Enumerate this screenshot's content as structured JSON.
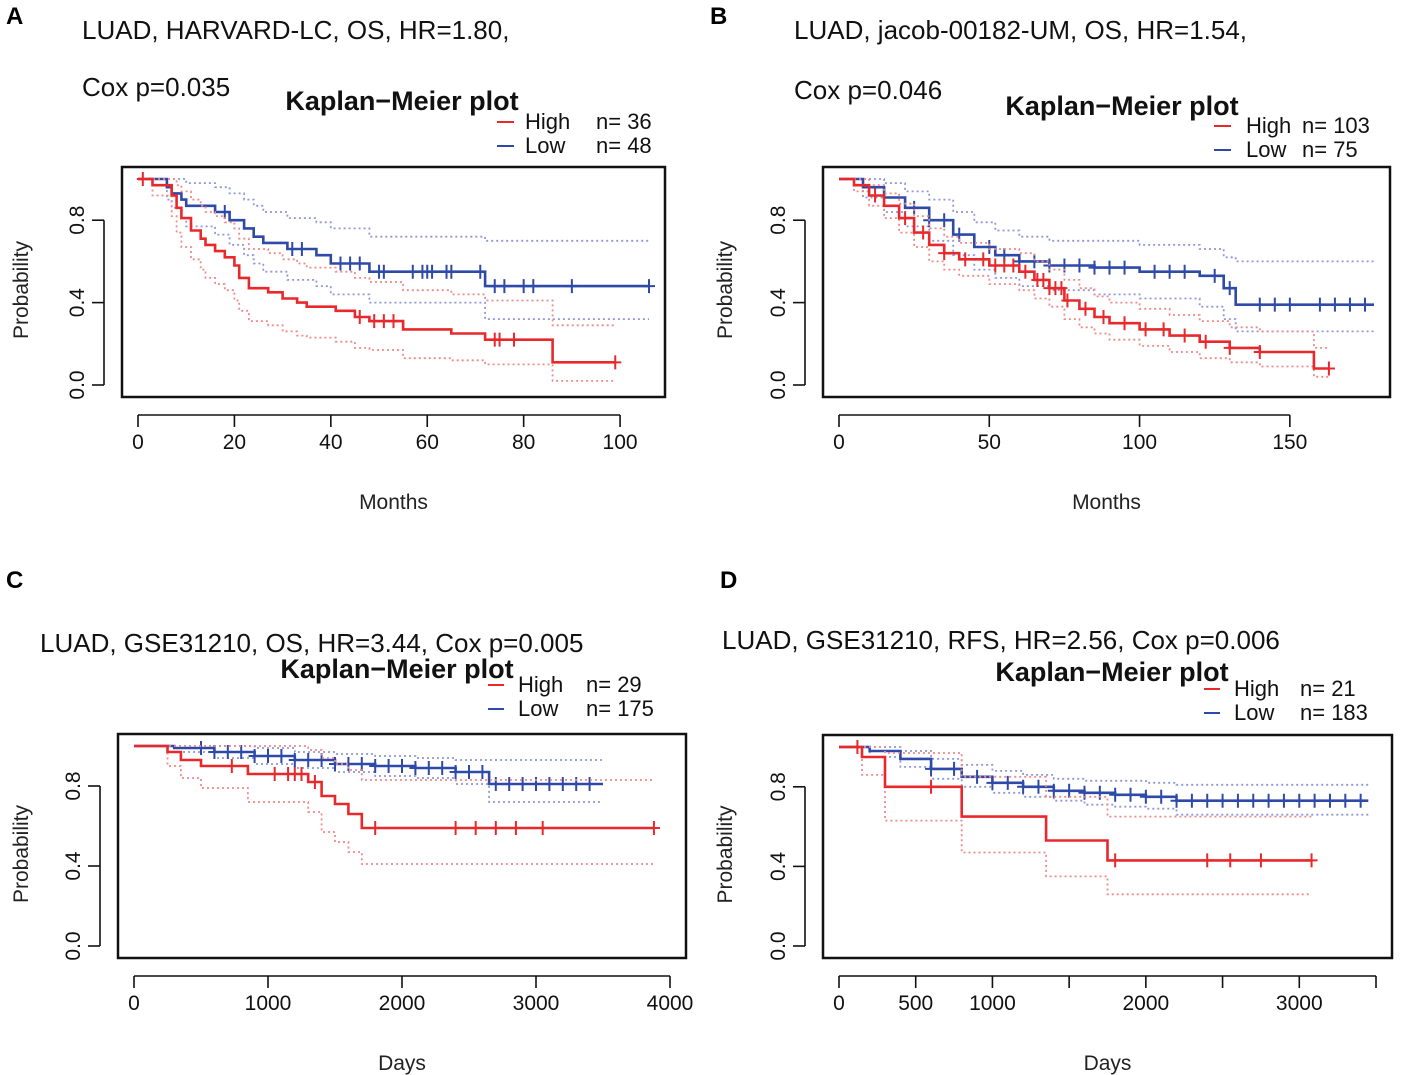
{
  "colors": {
    "high": "#e8282b",
    "low": "#2e4aa8",
    "high_ci": "#f08a8a",
    "low_ci": "#8f98d8",
    "axis": "#111111"
  },
  "chart_data": [
    {
      "id": "A",
      "type": "line",
      "panel_label": "A",
      "heading": [
        "LUAD, HARVARD-LC, OS, HR=1.80,",
        "Cox p=0.035"
      ],
      "title": "Kaplan−Meier plot",
      "xlabel": "Months",
      "ylabel": "Probability",
      "xlim": [
        0,
        106
      ],
      "ylim": [
        0,
        1
      ],
      "xticks": [
        0,
        20,
        40,
        60,
        80,
        100
      ],
      "xtick_labels": [
        "0",
        "20",
        "40",
        "60",
        "80",
        "100"
      ],
      "yticks": [
        0,
        0.4,
        0.8
      ],
      "ytick_labels": [
        "0.0",
        "0.4",
        "0.8"
      ],
      "legend": [
        {
          "group": "high",
          "label": "High",
          "n_label": "n= 36"
        },
        {
          "group": "low",
          "label": "Low",
          "n_label": "n= 48"
        }
      ],
      "series": [
        {
          "name": "High",
          "group": "high",
          "x": [
            0,
            3,
            7,
            8,
            9,
            11,
            13,
            14,
            16,
            18,
            20,
            21,
            23,
            27,
            30,
            33,
            35,
            41,
            45,
            48,
            55,
            65,
            72,
            86,
            99
          ],
          "y": [
            1.0,
            0.97,
            0.92,
            0.86,
            0.81,
            0.75,
            0.71,
            0.68,
            0.65,
            0.62,
            0.58,
            0.52,
            0.47,
            0.45,
            0.42,
            0.4,
            0.38,
            0.36,
            0.33,
            0.31,
            0.27,
            0.25,
            0.22,
            0.11,
            0.11
          ],
          "censor_x": [
            1,
            46,
            49,
            51,
            53,
            74,
            75,
            78,
            99
          ],
          "ci_lower_y": [
            1.0,
            0.92,
            0.82,
            0.74,
            0.67,
            0.61,
            0.56,
            0.52,
            0.49,
            0.46,
            0.41,
            0.36,
            0.31,
            0.29,
            0.26,
            0.24,
            0.23,
            0.21,
            0.18,
            0.17,
            0.13,
            0.12,
            0.1,
            0.02,
            0.02
          ],
          "ci_upper_y": [
            1.0,
            1.0,
            1.0,
            0.97,
            0.94,
            0.9,
            0.87,
            0.84,
            0.82,
            0.79,
            0.76,
            0.71,
            0.66,
            0.64,
            0.61,
            0.59,
            0.57,
            0.55,
            0.52,
            0.5,
            0.46,
            0.44,
            0.41,
            0.29,
            0.29
          ]
        },
        {
          "name": "Low",
          "group": "low",
          "x": [
            0,
            6,
            7,
            9,
            10,
            16,
            19,
            22,
            24,
            26,
            31,
            37,
            40,
            48,
            72,
            106
          ],
          "y": [
            1.0,
            0.96,
            0.93,
            0.9,
            0.87,
            0.84,
            0.8,
            0.76,
            0.72,
            0.69,
            0.66,
            0.63,
            0.59,
            0.55,
            0.48,
            0.48
          ],
          "censor_x": [
            18,
            32,
            34,
            42,
            44,
            46,
            50,
            51,
            57,
            59,
            60,
            61,
            64,
            65,
            71,
            74,
            76,
            80,
            82,
            90,
            106
          ],
          "ci_lower_y": [
            1.0,
            0.9,
            0.86,
            0.81,
            0.77,
            0.73,
            0.68,
            0.63,
            0.59,
            0.55,
            0.51,
            0.48,
            0.44,
            0.4,
            0.32,
            0.32
          ],
          "ci_upper_y": [
            1.0,
            1.0,
            1.0,
            1.0,
            0.98,
            0.96,
            0.93,
            0.9,
            0.87,
            0.84,
            0.81,
            0.79,
            0.76,
            0.72,
            0.7,
            0.7
          ]
        }
      ]
    },
    {
      "id": "B",
      "type": "line",
      "panel_label": "B",
      "heading": [
        "LUAD, jacob-00182-UM, OS, HR=1.54,",
        "Cox p=0.046"
      ],
      "title": "Kaplan−Meier plot",
      "xlabel": "Months",
      "ylabel": "Probability",
      "xlim": [
        0,
        178
      ],
      "ylim": [
        0,
        1
      ],
      "xticks": [
        0,
        50,
        100,
        150
      ],
      "xtick_labels": [
        "0",
        "50",
        "100",
        "150"
      ],
      "yticks": [
        0,
        0.4,
        0.8
      ],
      "ytick_labels": [
        "0.0",
        "0.4",
        "0.8"
      ],
      "legend": [
        {
          "group": "high",
          "label": "High",
          "n_label": "n= 103"
        },
        {
          "group": "low",
          "label": "Low",
          "n_label": "n= 75"
        }
      ],
      "series": [
        {
          "name": "High",
          "group": "high",
          "x": [
            0,
            5,
            10,
            15,
            20,
            25,
            30,
            35,
            40,
            50,
            60,
            65,
            70,
            75,
            80,
            85,
            90,
            100,
            110,
            120,
            130,
            140,
            155,
            158,
            163
          ],
          "y": [
            1.0,
            0.97,
            0.92,
            0.87,
            0.81,
            0.74,
            0.68,
            0.64,
            0.61,
            0.58,
            0.55,
            0.51,
            0.47,
            0.41,
            0.37,
            0.33,
            0.3,
            0.27,
            0.24,
            0.21,
            0.18,
            0.16,
            0.16,
            0.08,
            0.08
          ],
          "censor_x": [
            12,
            22,
            28,
            35,
            42,
            48,
            52,
            55,
            58,
            62,
            66,
            68,
            70,
            72,
            74,
            76,
            82,
            88,
            95,
            102,
            108,
            115,
            122,
            130,
            140,
            163
          ],
          "ci_lower_y": [
            1.0,
            0.94,
            0.87,
            0.81,
            0.74,
            0.67,
            0.6,
            0.56,
            0.53,
            0.49,
            0.46,
            0.42,
            0.38,
            0.32,
            0.28,
            0.25,
            0.22,
            0.19,
            0.16,
            0.13,
            0.11,
            0.09,
            0.09,
            0.04,
            0.04
          ],
          "ci_upper_y": [
            1.0,
            1.0,
            0.97,
            0.93,
            0.88,
            0.82,
            0.76,
            0.72,
            0.69,
            0.66,
            0.64,
            0.6,
            0.56,
            0.51,
            0.47,
            0.43,
            0.4,
            0.37,
            0.34,
            0.31,
            0.28,
            0.26,
            0.26,
            0.18,
            0.18
          ]
        },
        {
          "name": "Low",
          "group": "low",
          "x": [
            0,
            8,
            15,
            22,
            30,
            38,
            45,
            52,
            60,
            70,
            85,
            100,
            120,
            128,
            132,
            178
          ],
          "y": [
            1.0,
            0.96,
            0.91,
            0.86,
            0.8,
            0.73,
            0.67,
            0.63,
            0.6,
            0.58,
            0.57,
            0.55,
            0.53,
            0.47,
            0.39,
            0.39
          ],
          "censor_x": [
            25,
            30,
            35,
            40,
            50,
            55,
            60,
            65,
            70,
            75,
            80,
            85,
            90,
            95,
            105,
            110,
            115,
            125,
            130,
            140,
            145,
            150,
            160,
            165,
            170,
            175
          ],
          "ci_lower_y": [
            1.0,
            0.91,
            0.84,
            0.77,
            0.7,
            0.63,
            0.56,
            0.52,
            0.48,
            0.46,
            0.44,
            0.42,
            0.38,
            0.32,
            0.26,
            0.26
          ],
          "ci_upper_y": [
            1.0,
            1.0,
            0.98,
            0.94,
            0.9,
            0.84,
            0.79,
            0.75,
            0.72,
            0.7,
            0.7,
            0.68,
            0.66,
            0.62,
            0.6,
            0.6
          ]
        }
      ]
    },
    {
      "id": "C",
      "type": "line",
      "panel_label": "C",
      "heading": [
        "LUAD, GSE31210, OS, HR=3.44, Cox p=0.005"
      ],
      "title": "Kaplan−Meier plot",
      "xlabel": "Days",
      "ylabel": "Probability",
      "xlim": [
        0,
        4000
      ],
      "ylim": [
        0,
        1
      ],
      "xticks": [
        0,
        1000,
        2000,
        3000,
        4000
      ],
      "xtick_labels": [
        "0",
        "1000",
        "2000",
        "3000",
        "4000"
      ],
      "yticks": [
        0,
        0.4,
        0.8
      ],
      "ytick_labels": [
        "0.0",
        "0.4",
        "0.8"
      ],
      "legend": [
        {
          "group": "high",
          "label": "High",
          "n_label": "n= 29"
        },
        {
          "group": "low",
          "label": "Low",
          "n_label": "n= 175"
        }
      ],
      "series": [
        {
          "name": "High",
          "group": "high",
          "x": [
            0,
            250,
            350,
            500,
            850,
            1000,
            1300,
            1400,
            1500,
            1600,
            1700,
            3880
          ],
          "y": [
            1.0,
            0.97,
            0.93,
            0.9,
            0.86,
            0.86,
            0.82,
            0.75,
            0.71,
            0.66,
            0.59,
            0.59
          ],
          "censor_x": [
            730,
            1050,
            1150,
            1200,
            1250,
            1350,
            1800,
            2400,
            2550,
            2700,
            2850,
            3050,
            3880
          ],
          "ci_lower_y": [
            1.0,
            0.9,
            0.84,
            0.79,
            0.72,
            0.72,
            0.67,
            0.57,
            0.52,
            0.47,
            0.41,
            0.41
          ],
          "ci_upper_y": [
            1.0,
            1.0,
            1.0,
            1.0,
            1.0,
            1.0,
            0.98,
            0.94,
            0.91,
            0.88,
            0.83,
            0.83
          ]
        },
        {
          "name": "Low",
          "group": "low",
          "x": [
            0,
            300,
            600,
            900,
            1200,
            1500,
            1800,
            2100,
            2400,
            2650,
            3500
          ],
          "y": [
            1.0,
            0.99,
            0.97,
            0.95,
            0.93,
            0.91,
            0.9,
            0.89,
            0.87,
            0.81,
            0.81
          ],
          "censor_x": [
            500,
            600,
            700,
            800,
            900,
            1000,
            1100,
            1200,
            1300,
            1400,
            1500,
            1600,
            1700,
            1800,
            1900,
            2000,
            2100,
            2200,
            2300,
            2400,
            2500,
            2600,
            2700,
            2800,
            2900,
            3000,
            3100,
            3200,
            3300,
            3400
          ],
          "ci_lower_y": [
            1.0,
            0.97,
            0.94,
            0.91,
            0.89,
            0.87,
            0.85,
            0.84,
            0.81,
            0.72,
            0.72
          ],
          "ci_upper_y": [
            1.0,
            1.0,
            1.0,
            0.99,
            0.97,
            0.96,
            0.95,
            0.94,
            0.93,
            0.93,
            0.93
          ]
        }
      ]
    },
    {
      "id": "D",
      "type": "line",
      "panel_label": "D",
      "heading": [
        "LUAD, GSE31210, RFS, HR=2.56, Cox p=0.006"
      ],
      "title": "Kaplan−Meier plot",
      "xlabel": "Days",
      "ylabel": "Probability",
      "xlim": [
        0,
        3500
      ],
      "ylim": [
        0,
        1
      ],
      "xticks": [
        0,
        500,
        1000,
        2000,
        3000
      ],
      "xtick_labels": [
        "0",
        "500",
        "1000",
        "2000",
        "3000"
      ],
      "minor_xticks": [
        1500,
        2500,
        3500
      ],
      "yticks": [
        0,
        0.4,
        0.8
      ],
      "ytick_labels": [
        "0.0",
        "0.4",
        "0.8"
      ],
      "legend": [
        {
          "group": "high",
          "label": "High",
          "n_label": "n= 21"
        },
        {
          "group": "low",
          "label": "Low",
          "n_label": "n= 183"
        }
      ],
      "series": [
        {
          "name": "High",
          "group": "high",
          "x": [
            0,
            150,
            300,
            800,
            1350,
            1750,
            3080
          ],
          "y": [
            1.0,
            0.95,
            0.8,
            0.65,
            0.53,
            0.43,
            0.43
          ],
          "censor_x": [
            120,
            600,
            1800,
            2400,
            2550,
            2750,
            3080
          ],
          "ci_lower_y": [
            1.0,
            0.86,
            0.63,
            0.47,
            0.35,
            0.26,
            0.26
          ],
          "ci_upper_y": [
            1.0,
            1.0,
            0.97,
            0.85,
            0.75,
            0.65,
            0.65
          ]
        },
        {
          "name": "Low",
          "group": "low",
          "x": [
            0,
            200,
            400,
            600,
            800,
            1000,
            1200,
            1400,
            1600,
            1800,
            2000,
            2200,
            3450
          ],
          "y": [
            1.0,
            0.98,
            0.94,
            0.89,
            0.85,
            0.82,
            0.8,
            0.78,
            0.77,
            0.76,
            0.75,
            0.73,
            0.73
          ],
          "censor_x": [
            600,
            750,
            900,
            1000,
            1100,
            1200,
            1300,
            1400,
            1500,
            1600,
            1700,
            1800,
            1900,
            2000,
            2100,
            2200,
            2300,
            2400,
            2500,
            2600,
            2700,
            2800,
            2900,
            3000,
            3100,
            3200,
            3300,
            3400
          ],
          "ci_lower_y": [
            1.0,
            0.95,
            0.9,
            0.84,
            0.8,
            0.77,
            0.75,
            0.73,
            0.71,
            0.7,
            0.69,
            0.66,
            0.66
          ],
          "ci_upper_y": [
            1.0,
            1.0,
            0.98,
            0.94,
            0.91,
            0.88,
            0.86,
            0.84,
            0.83,
            0.83,
            0.82,
            0.81,
            0.81
          ]
        }
      ]
    }
  ]
}
